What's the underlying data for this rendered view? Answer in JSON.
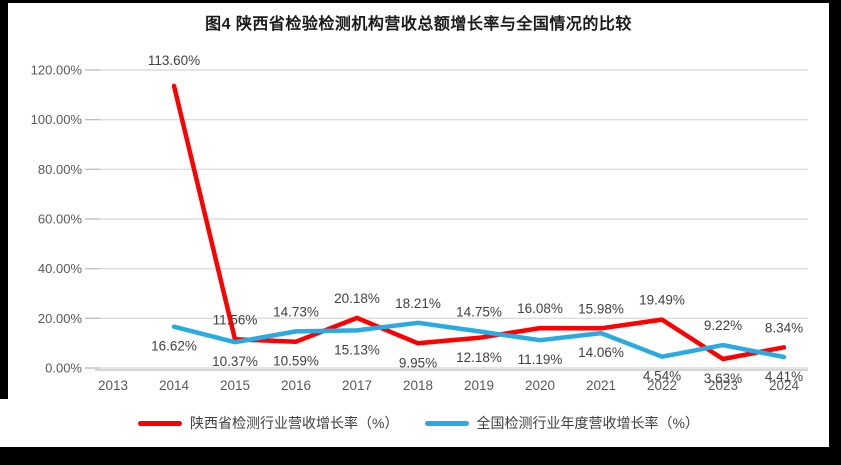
{
  "chart_data": {
    "type": "line",
    "title": "图4 陕西省检验检测机构营收总额增长率与全国情况的比较",
    "xlabel": "",
    "ylabel": "",
    "x": [
      2013,
      2014,
      2015,
      2016,
      2017,
      2018,
      2019,
      2020,
      2021,
      2022,
      2023,
      2024
    ],
    "y_ticks": [
      "0.00%",
      "20.00%",
      "40.00%",
      "60.00%",
      "80.00%",
      "100.00%",
      "120.00%"
    ],
    "ylim": [
      0,
      120
    ],
    "grid": true,
    "legend_position": "bottom",
    "series": [
      {
        "name": "陕西省检测行业营收增长率（%）",
        "color": "#fe0000",
        "points": [
          {
            "x": 2014,
            "v": 113.6,
            "label": "113.60%",
            "pos": "above",
            "dy": -6
          },
          {
            "x": 2015,
            "v": 11.56,
            "label": "11.56%",
            "pos": "above"
          },
          {
            "x": 2016,
            "v": 10.59,
            "label": "10.59%",
            "pos": "below"
          },
          {
            "x": 2017,
            "v": 20.18,
            "label": "20.18%",
            "pos": "above"
          },
          {
            "x": 2018,
            "v": 9.95,
            "label": "9.95%",
            "pos": "below"
          },
          {
            "x": 2019,
            "v": 12.18,
            "label": "12.18%",
            "pos": "below"
          },
          {
            "x": 2020,
            "v": 16.08,
            "label": "16.08%",
            "pos": "above"
          },
          {
            "x": 2021,
            "v": 15.98,
            "label": "15.98%",
            "pos": "above"
          },
          {
            "x": 2022,
            "v": 19.49,
            "label": "19.49%",
            "pos": "above"
          },
          {
            "x": 2023,
            "v": 3.63,
            "label": "3.63%",
            "pos": "below"
          },
          {
            "x": 2024,
            "v": 8.34,
            "label": "8.34%",
            "pos": "above"
          }
        ]
      },
      {
        "name": "全国检测行业年度营收增长率（%）",
        "color": "#29abe2",
        "points": [
          {
            "x": 2014,
            "v": 16.62,
            "label": "16.62%",
            "pos": "below"
          },
          {
            "x": 2015,
            "v": 10.37,
            "label": "10.37%",
            "pos": "below"
          },
          {
            "x": 2016,
            "v": 14.73,
            "label": "14.73%",
            "pos": "above"
          },
          {
            "x": 2017,
            "v": 15.13,
            "label": "15.13%",
            "pos": "below"
          },
          {
            "x": 2018,
            "v": 18.21,
            "label": "18.21%",
            "pos": "above"
          },
          {
            "x": 2019,
            "v": 14.75,
            "label": "14.75%",
            "pos": "above"
          },
          {
            "x": 2020,
            "v": 11.19,
            "label": "11.19%",
            "pos": "below"
          },
          {
            "x": 2021,
            "v": 14.06,
            "label": "14.06%",
            "pos": "below"
          },
          {
            "x": 2022,
            "v": 4.54,
            "label": "4.54%",
            "pos": "below"
          },
          {
            "x": 2023,
            "v": 9.22,
            "label": "9.22%",
            "pos": "above"
          },
          {
            "x": 2024,
            "v": 4.41,
            "label": "4.41%",
            "pos": "below"
          }
        ]
      }
    ],
    "style": {
      "gridline_color": "#dcdcdc",
      "tick_color": "#bfbfbf",
      "axis_color": "#c9c9c9",
      "axis_label_color": "#595959",
      "data_label_color": "#404040",
      "line_width": 4.5
    }
  }
}
